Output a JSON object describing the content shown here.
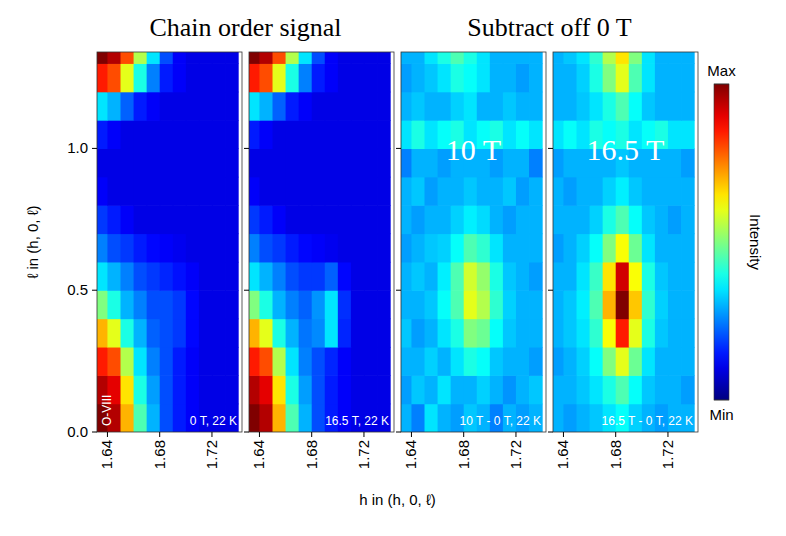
{
  "figure": {
    "headings": [
      "Chain order signal",
      "Subtract off 0 T"
    ],
    "xlabel": "h in (h, 0, ℓ)",
    "ylabel": "ℓ in (h, 0, ℓ)",
    "colorbar": {
      "label": "Intensity",
      "range": [
        0,
        1
      ],
      "ticks": [
        {
          "value": 1,
          "label": "Max"
        },
        {
          "value": 0,
          "label": "Min"
        }
      ]
    }
  },
  "chart_data": [
    {
      "type": "heatmap",
      "label": "0 T, 22 K",
      "annotation": "O-VIII",
      "tick_labels": true,
      "x": [
        1.635,
        1.645,
        1.655,
        1.665,
        1.675,
        1.685,
        1.695,
        1.705,
        1.715,
        1.725,
        1.735
      ],
      "y": [
        0.05,
        0.15,
        0.25,
        0.35,
        0.45,
        0.55,
        0.65,
        0.75,
        0.85,
        0.95,
        1.05,
        1.15,
        1.25,
        1.35
      ],
      "xlim": [
        1.632,
        1.743
      ],
      "ylim": [
        0,
        1.34
      ],
      "xticks": [
        1.64,
        1.68,
        1.72
      ],
      "yticks": [
        {
          "value": 0,
          "label": "0.0"
        },
        0.5,
        {
          "value": 1,
          "label": "1.0"
        }
      ],
      "cells": [
        [
          1.0,
          0.95,
          0.7,
          0.45,
          0.3,
          0.2,
          0.15,
          0.12,
          0.1,
          0.1,
          0.1
        ],
        [
          0.95,
          0.9,
          0.65,
          0.4,
          0.28,
          0.2,
          0.15,
          0.12,
          0.1,
          0.1,
          0.1
        ],
        [
          0.85,
          0.8,
          0.55,
          0.35,
          0.25,
          0.2,
          0.15,
          0.12,
          0.1,
          0.1,
          0.1
        ],
        [
          0.7,
          0.6,
          0.4,
          0.3,
          0.22,
          0.2,
          0.18,
          0.13,
          0.1,
          0.1,
          0.1
        ],
        [
          0.5,
          0.4,
          0.3,
          0.25,
          0.2,
          0.2,
          0.18,
          0.13,
          0.1,
          0.1,
          0.1
        ],
        [
          0.35,
          0.3,
          0.25,
          0.2,
          0.18,
          0.16,
          0.14,
          0.12,
          0.1,
          0.1,
          0.1
        ],
        [
          0.25,
          0.2,
          0.18,
          0.15,
          0.13,
          0.12,
          0.11,
          0.1,
          0.1,
          0.1,
          0.1
        ],
        [
          0.18,
          0.15,
          0.12,
          0.1,
          0.1,
          0.1,
          0.1,
          0.1,
          0.1,
          0.1,
          0.1
        ],
        [
          0.12,
          0.1,
          0.1,
          0.1,
          0.1,
          0.1,
          0.1,
          0.1,
          0.1,
          0.1,
          0.1
        ],
        [
          0.1,
          0.1,
          0.1,
          0.1,
          0.1,
          0.1,
          0.1,
          0.1,
          0.1,
          0.1,
          0.1
        ],
        [
          0.15,
          0.12,
          0.1,
          0.1,
          0.1,
          0.1,
          0.1,
          0.1,
          0.1,
          0.1,
          0.1
        ],
        [
          0.35,
          0.3,
          0.22,
          0.15,
          0.12,
          0.1,
          0.1,
          0.1,
          0.1,
          0.1,
          0.1
        ],
        [
          0.85,
          0.8,
          0.6,
          0.4,
          0.25,
          0.15,
          0.12,
          0.1,
          0.1,
          0.1,
          0.1
        ],
        [
          1.0,
          0.95,
          0.8,
          0.55,
          0.35,
          0.2,
          0.12,
          0.1,
          0.1,
          0.1,
          0.1
        ]
      ]
    },
    {
      "type": "heatmap",
      "label": "16.5 T, 22 K",
      "tick_labels": "x",
      "x": [
        1.635,
        1.645,
        1.655,
        1.665,
        1.675,
        1.685,
        1.695,
        1.705,
        1.715,
        1.725,
        1.735
      ],
      "y": [
        0.05,
        0.15,
        0.25,
        0.35,
        0.45,
        0.55,
        0.65,
        0.75,
        0.85,
        0.95,
        1.05,
        1.15,
        1.25,
        1.35
      ],
      "xlim": [
        1.632,
        1.743
      ],
      "ylim": [
        0,
        1.34
      ],
      "xticks": [
        1.64,
        1.68,
        1.72
      ],
      "yticks": [
        0,
        0.5,
        1
      ],
      "cells": [
        [
          1.0,
          0.95,
          0.7,
          0.45,
          0.3,
          0.2,
          0.15,
          0.12,
          0.1,
          0.1,
          0.1
        ],
        [
          0.95,
          0.9,
          0.65,
          0.4,
          0.28,
          0.2,
          0.15,
          0.12,
          0.1,
          0.1,
          0.1
        ],
        [
          0.85,
          0.8,
          0.55,
          0.35,
          0.25,
          0.2,
          0.16,
          0.12,
          0.1,
          0.1,
          0.1
        ],
        [
          0.7,
          0.6,
          0.4,
          0.3,
          0.24,
          0.26,
          0.35,
          0.16,
          0.1,
          0.1,
          0.1
        ],
        [
          0.5,
          0.4,
          0.3,
          0.25,
          0.22,
          0.27,
          0.35,
          0.17,
          0.1,
          0.1,
          0.1
        ],
        [
          0.35,
          0.3,
          0.25,
          0.2,
          0.18,
          0.18,
          0.22,
          0.13,
          0.1,
          0.1,
          0.1
        ],
        [
          0.25,
          0.2,
          0.18,
          0.15,
          0.13,
          0.12,
          0.11,
          0.1,
          0.1,
          0.1,
          0.1
        ],
        [
          0.18,
          0.15,
          0.12,
          0.1,
          0.1,
          0.1,
          0.1,
          0.1,
          0.1,
          0.1,
          0.1
        ],
        [
          0.12,
          0.1,
          0.1,
          0.1,
          0.1,
          0.1,
          0.1,
          0.1,
          0.1,
          0.1,
          0.1
        ],
        [
          0.1,
          0.1,
          0.1,
          0.1,
          0.1,
          0.1,
          0.1,
          0.1,
          0.1,
          0.1,
          0.1
        ],
        [
          0.15,
          0.12,
          0.1,
          0.1,
          0.1,
          0.1,
          0.1,
          0.1,
          0.1,
          0.1,
          0.1
        ],
        [
          0.35,
          0.3,
          0.22,
          0.15,
          0.12,
          0.1,
          0.1,
          0.1,
          0.1,
          0.1,
          0.1
        ],
        [
          0.85,
          0.8,
          0.6,
          0.4,
          0.25,
          0.15,
          0.12,
          0.1,
          0.1,
          0.1,
          0.1
        ],
        [
          1.0,
          0.95,
          0.8,
          0.55,
          0.35,
          0.2,
          0.12,
          0.1,
          0.1,
          0.1,
          0.1
        ]
      ]
    },
    {
      "type": "heatmap",
      "label": "10 T - 0 T, 22 K",
      "title": "10 T",
      "tick_labels": "x",
      "x": [
        1.635,
        1.645,
        1.655,
        1.665,
        1.675,
        1.685,
        1.695,
        1.705,
        1.715,
        1.725,
        1.735
      ],
      "y": [
        0.05,
        0.15,
        0.25,
        0.35,
        0.45,
        0.55,
        0.65,
        0.75,
        0.85,
        0.95,
        1.05,
        1.15,
        1.25,
        1.35
      ],
      "xlim": [
        1.632,
        1.743
      ],
      "ylim": [
        0,
        1.34
      ],
      "xticks": [
        1.64,
        1.68,
        1.72
      ],
      "yticks": [
        0,
        0.5,
        1
      ],
      "cells": [
        [
          0.3,
          0.25,
          0.35,
          0.3,
          0.28,
          0.32,
          0.3,
          0.25,
          0.3,
          0.28,
          0.3
        ],
        [
          0.28,
          0.32,
          0.3,
          0.35,
          0.3,
          0.3,
          0.33,
          0.3,
          0.27,
          0.3,
          0.32
        ],
        [
          0.3,
          0.3,
          0.33,
          0.3,
          0.35,
          0.4,
          0.38,
          0.32,
          0.3,
          0.3,
          0.28
        ],
        [
          0.32,
          0.28,
          0.3,
          0.35,
          0.4,
          0.5,
          0.48,
          0.38,
          0.32,
          0.3,
          0.3
        ],
        [
          0.3,
          0.3,
          0.32,
          0.38,
          0.45,
          0.6,
          0.55,
          0.42,
          0.33,
          0.3,
          0.3
        ],
        [
          0.3,
          0.32,
          0.3,
          0.36,
          0.45,
          0.58,
          0.52,
          0.4,
          0.32,
          0.3,
          0.28
        ],
        [
          0.28,
          0.3,
          0.32,
          0.33,
          0.38,
          0.45,
          0.42,
          0.35,
          0.3,
          0.3,
          0.3
        ],
        [
          0.3,
          0.28,
          0.3,
          0.3,
          0.33,
          0.36,
          0.34,
          0.3,
          0.28,
          0.3,
          0.3
        ],
        [
          0.3,
          0.32,
          0.28,
          0.3,
          0.3,
          0.32,
          0.3,
          0.3,
          0.32,
          0.28,
          0.3
        ],
        [
          0.25,
          0.3,
          0.3,
          0.28,
          0.3,
          0.3,
          0.3,
          0.28,
          0.3,
          0.3,
          0.25
        ],
        [
          0.35,
          0.4,
          0.35,
          0.38,
          0.4,
          0.35,
          0.38,
          0.4,
          0.35,
          0.38,
          0.35
        ],
        [
          0.3,
          0.32,
          0.3,
          0.3,
          0.33,
          0.35,
          0.3,
          0.3,
          0.32,
          0.3,
          0.3
        ],
        [
          0.28,
          0.3,
          0.32,
          0.35,
          0.4,
          0.38,
          0.35,
          0.3,
          0.3,
          0.28,
          0.3
        ],
        [
          0.3,
          0.3,
          0.35,
          0.4,
          0.45,
          0.4,
          0.35,
          0.3,
          0.3,
          0.3,
          0.3
        ]
      ]
    },
    {
      "type": "heatmap",
      "label": "16.5 T - 0 T, 22 K",
      "title": "16.5 T",
      "tick_labels": "x",
      "x": [
        1.635,
        1.645,
        1.655,
        1.665,
        1.675,
        1.685,
        1.695,
        1.705,
        1.715,
        1.725,
        1.735
      ],
      "y": [
        0.05,
        0.15,
        0.25,
        0.35,
        0.45,
        0.55,
        0.65,
        0.75,
        0.85,
        0.95,
        1.05,
        1.15,
        1.25,
        1.35
      ],
      "xlim": [
        1.632,
        1.743
      ],
      "ylim": [
        0,
        1.34
      ],
      "xticks": [
        1.64,
        1.68,
        1.72
      ],
      "yticks": [
        0,
        0.5,
        1
      ],
      "cells": [
        [
          0.3,
          0.28,
          0.3,
          0.32,
          0.35,
          0.38,
          0.33,
          0.3,
          0.28,
          0.3,
          0.3
        ],
        [
          0.3,
          0.3,
          0.32,
          0.35,
          0.4,
          0.45,
          0.38,
          0.32,
          0.3,
          0.3,
          0.28
        ],
        [
          0.28,
          0.3,
          0.33,
          0.38,
          0.5,
          0.6,
          0.48,
          0.35,
          0.3,
          0.3,
          0.3
        ],
        [
          0.3,
          0.32,
          0.35,
          0.42,
          0.62,
          0.85,
          0.6,
          0.4,
          0.32,
          0.3,
          0.3
        ],
        [
          0.3,
          0.32,
          0.36,
          0.45,
          0.7,
          1.0,
          0.68,
          0.42,
          0.33,
          0.3,
          0.3
        ],
        [
          0.3,
          0.3,
          0.35,
          0.43,
          0.65,
          0.92,
          0.62,
          0.4,
          0.32,
          0.3,
          0.3
        ],
        [
          0.28,
          0.3,
          0.33,
          0.38,
          0.5,
          0.62,
          0.48,
          0.35,
          0.3,
          0.3,
          0.3
        ],
        [
          0.3,
          0.3,
          0.3,
          0.33,
          0.4,
          0.45,
          0.38,
          0.32,
          0.3,
          0.28,
          0.3
        ],
        [
          0.3,
          0.28,
          0.3,
          0.3,
          0.33,
          0.36,
          0.32,
          0.3,
          0.3,
          0.3,
          0.3
        ],
        [
          0.28,
          0.3,
          0.3,
          0.3,
          0.3,
          0.32,
          0.3,
          0.3,
          0.3,
          0.3,
          0.28
        ],
        [
          0.35,
          0.38,
          0.35,
          0.4,
          0.38,
          0.4,
          0.35,
          0.38,
          0.4,
          0.35,
          0.35
        ],
        [
          0.3,
          0.3,
          0.32,
          0.35,
          0.4,
          0.45,
          0.38,
          0.32,
          0.3,
          0.3,
          0.3
        ],
        [
          0.3,
          0.3,
          0.33,
          0.4,
          0.5,
          0.6,
          0.45,
          0.35,
          0.3,
          0.3,
          0.3
        ],
        [
          0.3,
          0.32,
          0.35,
          0.42,
          0.55,
          0.65,
          0.5,
          0.35,
          0.3,
          0.3,
          0.3
        ]
      ]
    }
  ]
}
